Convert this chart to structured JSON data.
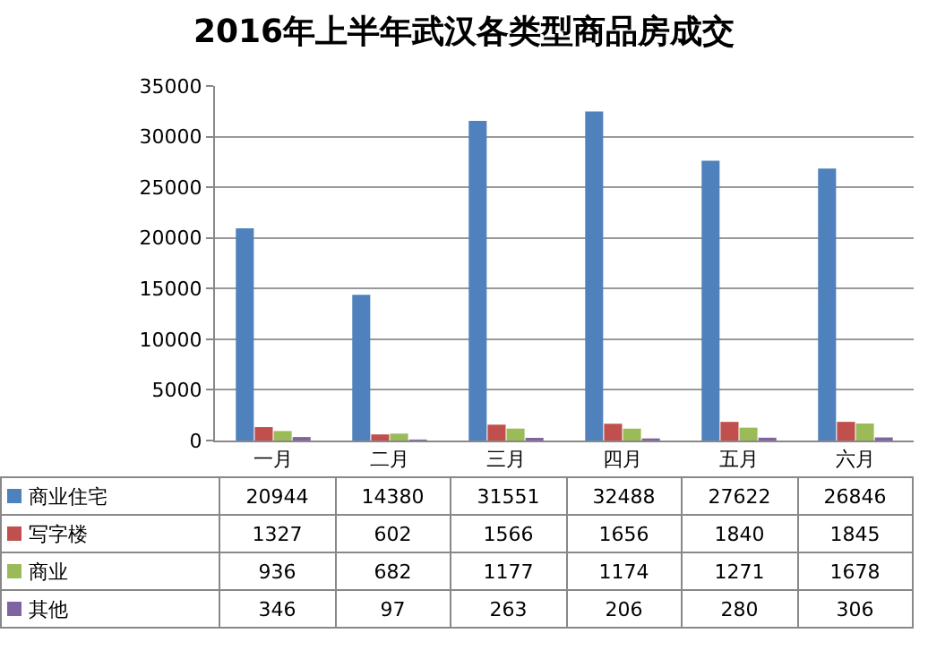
{
  "chart_data": {
    "type": "bar",
    "title": "2016年上半年武汉各类型商品房成交",
    "categories": [
      "一月",
      "二月",
      "三月",
      "四月",
      "五月",
      "六月"
    ],
    "series": [
      {
        "name": "商业住宅",
        "color": "#4f81bd",
        "values": [
          20944,
          14380,
          31551,
          32488,
          27622,
          26846
        ]
      },
      {
        "name": "写字楼",
        "color": "#c0504d",
        "values": [
          1327,
          602,
          1566,
          1656,
          1840,
          1845
        ]
      },
      {
        "name": "商业",
        "color": "#9bbb59",
        "values": [
          936,
          682,
          1177,
          1174,
          1271,
          1678
        ]
      },
      {
        "name": "其他",
        "color": "#8064a2",
        "values": [
          346,
          97,
          263,
          206,
          280,
          306
        ]
      }
    ],
    "ylim": [
      0,
      35000
    ],
    "yticks": [
      0,
      5000,
      10000,
      15000,
      20000,
      25000,
      30000,
      35000
    ],
    "grid": "y",
    "legend": "bottom",
    "data_labels": true
  }
}
